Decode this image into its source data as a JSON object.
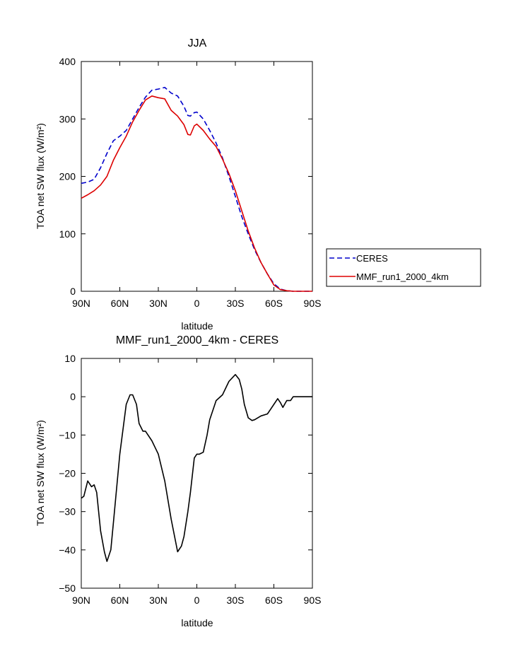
{
  "chart_data": [
    {
      "type": "line",
      "title": "JJA",
      "xlabel": "latitude",
      "ylabel": "TOA net SW flux (W/m²)",
      "xlim": [
        90,
        -90
      ],
      "ylim": [
        0,
        400
      ],
      "xticks": [
        90,
        60,
        30,
        0,
        -30,
        -60,
        -90
      ],
      "xtick_labels": [
        "90N",
        "60N",
        "30N",
        "0",
        "30S",
        "60S",
        "90S"
      ],
      "yticks": [
        0,
        100,
        200,
        300,
        400
      ],
      "ytick_labels": [
        "0",
        "100",
        "200",
        "300",
        "400"
      ],
      "legend": {
        "placement": "right, outside plot"
      },
      "series": [
        {
          "name": "CERES",
          "color": "#0000cc",
          "dash": "dashed",
          "x": [
            90,
            85,
            80,
            75,
            70,
            65,
            60,
            55,
            50,
            45,
            40,
            35,
            30,
            25,
            20,
            15,
            10,
            7,
            5,
            2,
            0,
            -5,
            -10,
            -15,
            -20,
            -25,
            -30,
            -35,
            -40,
            -45,
            -50,
            -55,
            -60,
            -65,
            -70,
            -75,
            -80,
            -85,
            -90
          ],
          "y": [
            188,
            190,
            195,
            215,
            240,
            262,
            270,
            280,
            300,
            320,
            338,
            350,
            352,
            355,
            345,
            340,
            322,
            306,
            305,
            311,
            312,
            300,
            280,
            258,
            232,
            200,
            165,
            130,
            100,
            72,
            50,
            30,
            13,
            4,
            1,
            0,
            0,
            0,
            0
          ]
        },
        {
          "name": "MMF_run1_2000_4km",
          "color": "#dd0000",
          "dash": "solid",
          "x": [
            90,
            85,
            80,
            75,
            70,
            65,
            60,
            55,
            50,
            45,
            40,
            35,
            30,
            25,
            20,
            15,
            10,
            7,
            5,
            2,
            0,
            -5,
            -10,
            -15,
            -20,
            -25,
            -30,
            -35,
            -40,
            -45,
            -50,
            -55,
            -60,
            -65,
            -70,
            -75,
            -80,
            -85,
            -90
          ],
          "y": [
            162,
            168,
            175,
            185,
            200,
            228,
            250,
            270,
            295,
            315,
            333,
            340,
            337,
            335,
            315,
            305,
            290,
            273,
            272,
            288,
            291,
            280,
            265,
            252,
            230,
            205,
            175,
            140,
            105,
            75,
            50,
            30,
            11,
            3,
            1,
            0,
            0,
            0,
            0
          ]
        }
      ]
    },
    {
      "type": "line",
      "title": "MMF_run1_2000_4km - CERES",
      "xlabel": "latitude",
      "ylabel": "TOA net SW flux (W/m²)",
      "xlim": [
        90,
        -90
      ],
      "ylim": [
        -50,
        10
      ],
      "xticks": [
        90,
        60,
        30,
        0,
        -30,
        -60,
        -90
      ],
      "xtick_labels": [
        "90N",
        "60N",
        "30N",
        "0",
        "30S",
        "60S",
        "90S"
      ],
      "yticks": [
        -50,
        -40,
        -30,
        -20,
        -10,
        0,
        10
      ],
      "ytick_labels": [
        "−50",
        "−40",
        "−30",
        "−20",
        "−10",
        "0",
        "10"
      ],
      "series": [
        {
          "color": "#000000",
          "dash": "solid",
          "x": [
            90,
            88,
            85,
            82,
            80,
            78,
            75,
            72,
            70,
            67,
            65,
            60,
            55,
            52,
            50,
            47,
            45,
            42,
            40,
            35,
            30,
            25,
            20,
            15,
            12,
            10,
            7,
            5,
            2,
            0,
            -2,
            -5,
            -8,
            -10,
            -15,
            -20,
            -25,
            -30,
            -33,
            -35,
            -37,
            -40,
            -43,
            -45,
            -50,
            -55,
            -60,
            -63,
            -65,
            -67,
            -70,
            -73,
            -75,
            -80,
            -85,
            -90
          ],
          "y": [
            -26.5,
            -26,
            -22,
            -23.5,
            -23,
            -25,
            -35,
            -40.5,
            -43,
            -40,
            -33,
            -15,
            -2,
            0.5,
            0.5,
            -2,
            -7,
            -9,
            -9,
            -11.5,
            -15,
            -22,
            -32,
            -40.5,
            -39,
            -36.5,
            -30,
            -25,
            -16,
            -15,
            -15,
            -14.5,
            -10,
            -6,
            -1,
            0.5,
            4,
            5.8,
            4.5,
            2,
            -2,
            -5.5,
            -6.2,
            -6,
            -5,
            -4.5,
            -2,
            -0.5,
            -1.5,
            -2.8,
            -1,
            -1,
            0,
            0,
            0,
            0
          ]
        }
      ]
    }
  ]
}
